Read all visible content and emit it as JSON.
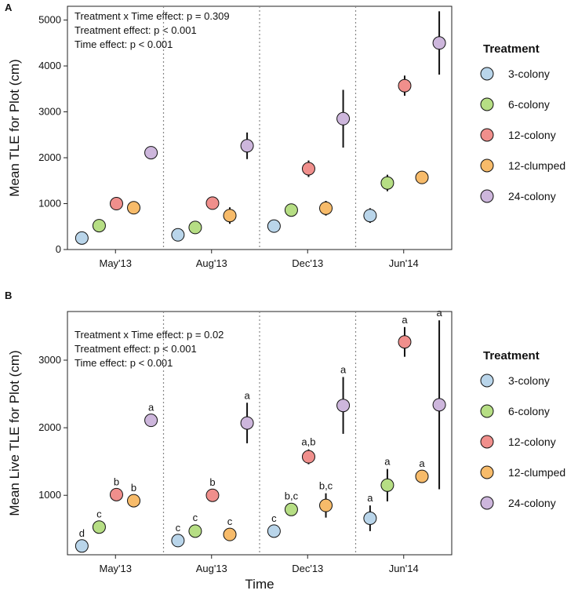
{
  "chart_data": {
    "type": "scatter",
    "x_axis_title": "Time",
    "categories": [
      "May'13",
      "Aug'13",
      "Dec'13",
      "Jun'14"
    ],
    "legend": {
      "title": "Treatment",
      "position": "right",
      "entries": [
        {
          "name": "3-colony",
          "color": "#b9d5ea"
        },
        {
          "name": "6-colony",
          "color": "#b6de84"
        },
        {
          "name": "12-colony",
          "color": "#f08f8c"
        },
        {
          "name": "12-clumped",
          "color": "#f7bb6a"
        },
        {
          "name": "24-colony",
          "color": "#cdb6dc"
        }
      ]
    },
    "panels": [
      {
        "panel_label": "A",
        "ylabel": "Mean TLE for Plot (cm)",
        "ylim": [
          0,
          5300
        ],
        "yticks": [
          0,
          1000,
          2000,
          3000,
          4000,
          5000
        ],
        "annotations": [
          "Treatment x Time effect: p = 0.309",
          "Treatment effect: p < 0.001",
          "Time effect: p < 0.001"
        ],
        "series": [
          {
            "name": "3-colony",
            "values": [
              250,
              320,
              510,
              740
            ],
            "err": [
              60,
              60,
              80,
              160
            ]
          },
          {
            "name": "6-colony",
            "values": [
              520,
              480,
              860,
              1450
            ],
            "err": [
              60,
              70,
              90,
              180
            ]
          },
          {
            "name": "12-colony",
            "values": [
              1000,
              1010,
              1760,
              3570
            ],
            "err": [
              80,
              90,
              180,
              220
            ]
          },
          {
            "name": "12-clumped",
            "values": [
              910,
              740,
              900,
              1570
            ],
            "err": [
              70,
              180,
              160,
              90
            ]
          },
          {
            "name": "24-colony",
            "values": [
              2110,
              2260,
              2850,
              4500
            ],
            "err": [
              80,
              290,
              630,
              690
            ]
          }
        ]
      },
      {
        "panel_label": "B",
        "ylabel": "Mean Live TLE for Plot (cm)",
        "ylim": [
          120,
          3720
        ],
        "yticks": [
          1000,
          2000,
          3000
        ],
        "annotations": [
          "Treatment x Time effect: p = 0.02",
          "Treatment effect: p < 0.001",
          "Time effect: p < 0.001"
        ],
        "series": [
          {
            "name": "3-colony",
            "values": [
              250,
              330,
              470,
              660
            ],
            "err": [
              50,
              60,
              60,
              190
            ],
            "labels": [
              "d",
              "c",
              "c",
              "a"
            ]
          },
          {
            "name": "6-colony",
            "values": [
              530,
              470,
              790,
              1150
            ],
            "err": [
              60,
              90,
              90,
              240
            ],
            "labels": [
              "c",
              "c",
              "b,c",
              "a"
            ]
          },
          {
            "name": "12-colony",
            "values": [
              1010,
              1000,
              1570,
              3270
            ],
            "err": [
              60,
              70,
              110,
              220
            ],
            "labels": [
              "b",
              "b",
              "a,b",
              "a"
            ]
          },
          {
            "name": "12-clumped",
            "values": [
              920,
              420,
              850,
              1280
            ],
            "err": [
              60,
              50,
              180,
              70
            ],
            "labels": [
              "b",
              "c",
              "b,c",
              "a"
            ]
          },
          {
            "name": "24-colony",
            "values": [
              2110,
              2070,
              2330,
              2340
            ],
            "err": [
              70,
              300,
              420,
              1250
            ],
            "labels": [
              "a",
              "a",
              "a",
              "a"
            ]
          }
        ]
      }
    ]
  }
}
